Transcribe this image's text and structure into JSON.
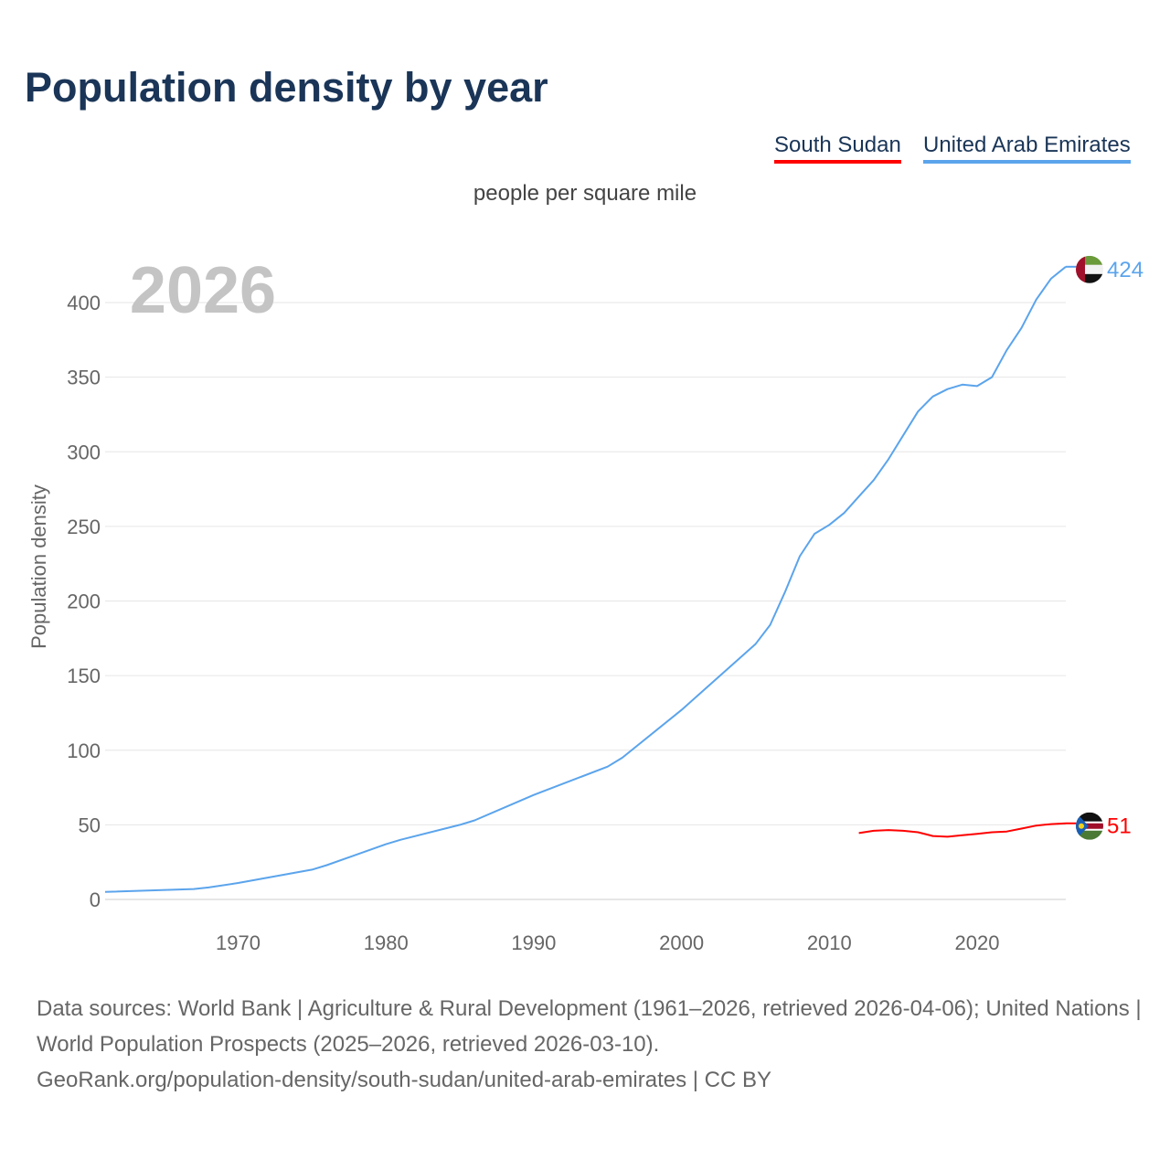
{
  "title": "Population density by year",
  "subtitle": "people per square mile",
  "legend": [
    "South Sudan",
    "United Arab Emirates"
  ],
  "footer": {
    "line1": "Data sources: World Bank | Agriculture & Rural Development (1961–2026, retrieved 2026-04-06); United Nations | World Population Prospects (2025–2026, retrieved 2026-03-10).",
    "line2": "GeoRank.org/population-density/south-sudan/united-arab-emirates | CC BY"
  },
  "chart_data": {
    "type": "line",
    "title": "Population density by year",
    "subtitle": "people per square mile",
    "xlabel": "",
    "ylabel": "Population density",
    "xlim": [
      1961,
      2026
    ],
    "ylim": [
      0,
      430
    ],
    "xticks": [
      1970,
      1980,
      1990,
      2000,
      2010,
      2020
    ],
    "yticks": [
      0,
      50,
      100,
      150,
      200,
      250,
      300,
      350,
      400
    ],
    "grid": true,
    "year_watermark": "2026",
    "legend_position": "top-right",
    "series": [
      {
        "name": "United Arab Emirates",
        "color": "#5ba4ec",
        "end_label": "424",
        "flag": "uae",
        "x": [
          1961,
          1967,
          1968,
          1970,
          1975,
          1976,
          1980,
          1981,
          1985,
          1986,
          1990,
          1995,
          1996,
          2000,
          2005,
          2006,
          2007,
          2008,
          2009,
          2010,
          2011,
          2012,
          2013,
          2014,
          2015,
          2016,
          2017,
          2018,
          2019,
          2020,
          2021,
          2022,
          2023,
          2024,
          2025,
          2026
        ],
        "y": [
          5,
          7,
          8,
          11,
          20,
          23,
          37,
          40,
          50,
          53,
          70,
          89,
          95,
          127,
          171,
          184,
          206,
          230,
          245,
          251,
          259,
          270,
          281,
          295,
          311,
          327,
          337,
          342,
          345,
          344,
          350,
          368,
          383,
          402,
          416,
          424
        ]
      },
      {
        "name": "South Sudan",
        "color": "#ff0000",
        "end_label": "51",
        "flag": "south-sudan",
        "x": [
          2012,
          2013,
          2014,
          2015,
          2016,
          2017,
          2018,
          2019,
          2020,
          2021,
          2022,
          2023,
          2024,
          2025,
          2026
        ],
        "y": [
          44.5,
          46,
          46.5,
          46,
          45,
          42.5,
          42,
          43,
          44,
          45,
          45.5,
          47.5,
          49.5,
          50.5,
          51
        ]
      }
    ]
  }
}
